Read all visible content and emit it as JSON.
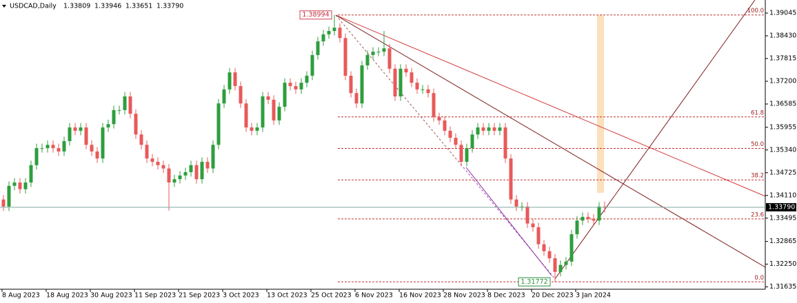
{
  "chart_data": {
    "type": "candlestick",
    "symbol": "USDCAD,Daily",
    "last_close_label": "1.33790",
    "up_color": "#2e9e3e",
    "down_color": "#e8595a",
    "categories": [
      "8 Aug 2023",
      null,
      null,
      null,
      null,
      null,
      null,
      null,
      "18 Aug 2023",
      null,
      null,
      null,
      null,
      null,
      null,
      null,
      "30 Aug 2023",
      null,
      null,
      null,
      null,
      null,
      null,
      null,
      "11 Sep 2023",
      null,
      null,
      null,
      null,
      null,
      null,
      null,
      "21 Sep 2023",
      null,
      null,
      null,
      null,
      null,
      null,
      null,
      "3 Oct 2023",
      null,
      null,
      null,
      null,
      null,
      null,
      null,
      "13 Oct 2023",
      null,
      null,
      null,
      null,
      null,
      null,
      null,
      "25 Oct 2023",
      null,
      null,
      null,
      null,
      null,
      null,
      null,
      "6 Nov 2023",
      null,
      null,
      null,
      null,
      null,
      null,
      null,
      "16 Nov 2023",
      null,
      null,
      null,
      null,
      null,
      null,
      null,
      "28 Nov 2023",
      null,
      null,
      null,
      null,
      null,
      null,
      null,
      "8 Dec 2023",
      null,
      null,
      null,
      null,
      null,
      null,
      null,
      "20 Dec 2023",
      null,
      null,
      null,
      null,
      null,
      null,
      null,
      "3 Jan 2024",
      null,
      null,
      null,
      null,
      null
    ],
    "open": [
      1.34,
      1.3381,
      1.3437,
      1.3446,
      1.3428,
      1.3446,
      1.3493,
      1.3539,
      1.3539,
      1.3548,
      1.3539,
      1.353,
      1.3558,
      1.3595,
      1.3586,
      1.3595,
      1.3548,
      1.353,
      1.3511,
      1.3595,
      1.3604,
      1.3642,
      1.3642,
      1.3679,
      1.3632,
      1.3576,
      1.3548,
      1.3511,
      1.3502,
      1.3493,
      1.3484,
      1.3446,
      1.3455,
      1.3465,
      1.3474,
      1.3493,
      1.3455,
      1.3502,
      1.3484,
      1.3548,
      1.366,
      1.3698,
      1.3744,
      1.3707,
      1.366,
      1.3595,
      1.3586,
      1.3595,
      1.3679,
      1.367,
      1.3614,
      1.3651,
      1.3716,
      1.3707,
      1.3698,
      1.3716,
      1.3735,
      1.3791,
      1.3828,
      1.3847,
      1.3856,
      1.3865,
      1.3837,
      1.3735,
      1.3688,
      1.366,
      1.3763,
      1.3791,
      1.38,
      1.38,
      1.3809,
      1.3754,
      1.3679,
      1.3754,
      1.3744,
      1.3716,
      1.3698,
      1.3698,
      1.3688,
      1.3623,
      1.3614,
      1.3586,
      1.3567,
      1.3548,
      1.3502,
      1.3539,
      1.3576,
      1.3595,
      1.3586,
      1.3595,
      1.3586,
      1.3595,
      1.3511,
      1.34,
      1.3381,
      1.3381,
      1.3335,
      1.3325,
      1.3279,
      1.326,
      1.3241,
      1.3204,
      1.3223,
      1.3232,
      1.3306,
      1.3343,
      1.3353,
      1.3348,
      1.3343,
      1.33809
    ],
    "high": [
      1.3412,
      1.3449,
      1.3458,
      1.3458,
      1.3458,
      1.3505,
      1.3551,
      1.3551,
      1.356,
      1.356,
      1.3551,
      1.357,
      1.3607,
      1.3607,
      1.3607,
      1.3607,
      1.356,
      1.3542,
      1.3607,
      1.3616,
      1.3654,
      1.3654,
      1.3691,
      1.3691,
      1.3644,
      1.3588,
      1.356,
      1.3523,
      1.3514,
      1.3505,
      1.3496,
      1.3467,
      1.3477,
      1.3486,
      1.3505,
      1.3505,
      1.3514,
      1.3514,
      1.356,
      1.3672,
      1.371,
      1.3756,
      1.3756,
      1.3719,
      1.3672,
      1.3607,
      1.3607,
      1.3691,
      1.3691,
      1.3682,
      1.3663,
      1.3728,
      1.3728,
      1.3719,
      1.3728,
      1.3747,
      1.3803,
      1.384,
      1.3859,
      1.3868,
      1.38994,
      1.3877,
      1.3849,
      1.3747,
      1.37,
      1.3775,
      1.3803,
      1.3812,
      1.3812,
      1.3856,
      1.3821,
      1.3766,
      1.3766,
      1.3766,
      1.3756,
      1.3728,
      1.371,
      1.371,
      1.37,
      1.3635,
      1.3626,
      1.3598,
      1.3579,
      1.356,
      1.3551,
      1.3588,
      1.3607,
      1.3607,
      1.3607,
      1.3607,
      1.3607,
      1.3607,
      1.3523,
      1.3412,
      1.3393,
      1.3393,
      1.3347,
      1.3337,
      1.3291,
      1.3272,
      1.3253,
      1.3235,
      1.3244,
      1.3318,
      1.3355,
      1.3365,
      1.3365,
      1.336,
      1.3393,
      1.33946
    ],
    "low": [
      1.3369,
      1.3369,
      1.3425,
      1.3416,
      1.3416,
      1.3434,
      1.3481,
      1.3527,
      1.3527,
      1.3527,
      1.3518,
      1.3518,
      1.3546,
      1.3574,
      1.3574,
      1.3536,
      1.3518,
      1.3499,
      1.3499,
      1.3583,
      1.3592,
      1.363,
      1.363,
      1.362,
      1.3564,
      1.3536,
      1.3499,
      1.349,
      1.3481,
      1.3472,
      1.337,
      1.3434,
      1.3443,
      1.3453,
      1.3462,
      1.3443,
      1.3443,
      1.3472,
      1.3472,
      1.3536,
      1.3648,
      1.3686,
      1.3695,
      1.3648,
      1.3583,
      1.3574,
      1.3574,
      1.3583,
      1.3658,
      1.3602,
      1.3602,
      1.3639,
      1.3695,
      1.3686,
      1.3686,
      1.3704,
      1.3723,
      1.3779,
      1.3816,
      1.3835,
      1.3844,
      1.3825,
      1.3723,
      1.3676,
      1.3648,
      1.3648,
      1.3751,
      1.3779,
      1.3788,
      1.3788,
      1.3742,
      1.3667,
      1.3667,
      1.3732,
      1.3704,
      1.3686,
      1.3686,
      1.3676,
      1.3611,
      1.3602,
      1.3574,
      1.3555,
      1.3536,
      1.349,
      1.349,
      1.3527,
      1.3564,
      1.3574,
      1.3574,
      1.3574,
      1.3574,
      1.3499,
      1.3388,
      1.3369,
      1.3369,
      1.3323,
      1.3313,
      1.3267,
      1.3248,
      1.3229,
      1.31772,
      1.3192,
      1.3211,
      1.322,
      1.3294,
      1.3331,
      1.3336,
      1.3331,
      1.3331,
      1.33651
    ],
    "close": [
      1.3381,
      1.3437,
      1.3446,
      1.3428,
      1.3446,
      1.3493,
      1.3539,
      1.3539,
      1.3548,
      1.3539,
      1.353,
      1.3558,
      1.3595,
      1.3586,
      1.3595,
      1.3548,
      1.353,
      1.3511,
      1.3595,
      1.3604,
      1.3642,
      1.3642,
      1.3679,
      1.3632,
      1.3576,
      1.3548,
      1.3511,
      1.3502,
      1.3493,
      1.3484,
      1.3446,
      1.3455,
      1.3465,
      1.3474,
      1.3493,
      1.3455,
      1.3502,
      1.3484,
      1.3548,
      1.366,
      1.3698,
      1.3744,
      1.3707,
      1.366,
      1.3595,
      1.3586,
      1.3595,
      1.3679,
      1.367,
      1.3614,
      1.3651,
      1.3716,
      1.3707,
      1.3698,
      1.3716,
      1.3735,
      1.3791,
      1.3828,
      1.3847,
      1.3856,
      1.3865,
      1.3837,
      1.3735,
      1.3688,
      1.366,
      1.3763,
      1.3791,
      1.38,
      1.38,
      1.3809,
      1.3754,
      1.3679,
      1.3754,
      1.3744,
      1.3716,
      1.3698,
      1.3698,
      1.3688,
      1.3623,
      1.3614,
      1.3586,
      1.3567,
      1.3548,
      1.3502,
      1.3539,
      1.3576,
      1.3595,
      1.3586,
      1.3595,
      1.3586,
      1.3595,
      1.3511,
      1.34,
      1.3381,
      1.3381,
      1.3335,
      1.3325,
      1.3279,
      1.326,
      1.3241,
      1.3204,
      1.3223,
      1.3232,
      1.3306,
      1.3343,
      1.3353,
      1.3348,
      1.3343,
      1.3381,
      1.3379
    ],
    "ylim": [
      1.31572,
      1.39399
    ],
    "yticks": [
      1.39045,
      {
        "value": 1.3843,
        "label": "1.38430"
      },
      1.37815,
      {
        "value": 1.372,
        "label": "1.37200"
      },
      1.36585,
      1.35955,
      {
        "value": 1.3534,
        "label": "1.35340"
      },
      1.34725,
      {
        "value": 1.3411,
        "label": "1.34110"
      },
      1.33495,
      1.32865,
      {
        "value": 1.3225,
        "label": "1.32250"
      },
      1.31635
    ],
    "fib_levels": [
      {
        "ratio": "100.0",
        "price": 1.38994
      },
      {
        "ratio": "61.8",
        "price": 1.36235
      },
      {
        "ratio": "50.0",
        "price": 1.35383
      },
      {
        "ratio": "38.2",
        "price": 1.34531
      },
      {
        "ratio": "23.6",
        "price": 1.33476
      },
      {
        "ratio": "0.0",
        "price": 1.31772
      }
    ]
  }
}
